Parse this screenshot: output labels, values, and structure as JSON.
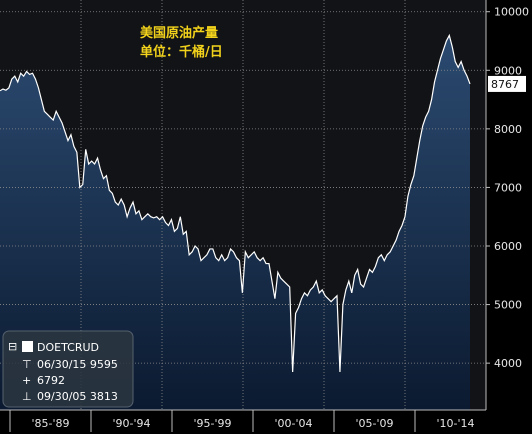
{
  "chart_data": {
    "type": "area",
    "title": "美国原油产量",
    "subtitle": "单位：千桶/日",
    "ylim": [
      3200,
      10200
    ],
    "y_ticks": [
      4000,
      5000,
      6000,
      7000,
      8000,
      9000,
      10000
    ],
    "y_tick_labels": [
      "4000",
      "5000",
      "6000",
      "7000",
      "8000",
      "9000",
      "10000"
    ],
    "x_period_labels": [
      "'85-'89",
      "'90-'94",
      "'95-'99",
      "'00-'04",
      "'05-'09",
      "'10-'14"
    ],
    "grid": true,
    "legend_placement": "bottom-left",
    "last_value_label": "8767",
    "series": [
      {
        "name": "DOETCRUD",
        "values": [
          8650,
          8680,
          8660,
          8700,
          8850,
          8900,
          8800,
          8950,
          8900,
          8980,
          8930,
          8950,
          8850,
          8700,
          8500,
          8300,
          8250,
          8200,
          8150,
          8300,
          8200,
          8100,
          7950,
          7800,
          7900,
          7700,
          7600,
          7000,
          7050,
          7650,
          7400,
          7450,
          7400,
          7500,
          7300,
          7150,
          7200,
          6950,
          6900,
          6750,
          6700,
          6800,
          6700,
          6500,
          6650,
          6750,
          6550,
          6600,
          6450,
          6500,
          6550,
          6500,
          6480,
          6500,
          6450,
          6500,
          6400,
          6350,
          6450,
          6250,
          6300,
          6500,
          6200,
          6250,
          5850,
          5900,
          6000,
          5950,
          5750,
          5800,
          5850,
          5950,
          5950,
          5800,
          5750,
          5850,
          5750,
          5800,
          5950,
          5900,
          5800,
          5750,
          5200,
          5900,
          5800,
          5850,
          5900,
          5800,
          5750,
          5800,
          5700,
          5700,
          5400,
          5100,
          5550,
          5450,
          5400,
          5350,
          5300,
          3850,
          4850,
          4950,
          5100,
          5200,
          5150,
          5250,
          5300,
          5400,
          5200,
          5250,
          5150,
          5100,
          5050,
          5100,
          5150,
          3850,
          5000,
          5250,
          5400,
          5200,
          5500,
          5600,
          5350,
          5300,
          5450,
          5600,
          5550,
          5650,
          5800,
          5850,
          5750,
          5850,
          5900,
          6000,
          6100,
          6250,
          6350,
          6500,
          6850,
          7050,
          7200,
          7500,
          7800,
          8050,
          8200,
          8300,
          8500,
          8800,
          9000,
          9200,
          9350,
          9500,
          9595,
          9400,
          9150,
          9050,
          9150,
          9000,
          8900,
          8767
        ]
      }
    ],
    "legend": {
      "series_code": "DOETCRUD",
      "high": "06/30/15 9595",
      "avg": "6792",
      "low": "09/30/05 3813"
    }
  },
  "colors": {
    "background": "#000000",
    "area_top": "#2b4a70",
    "area_bottom": "#0b1a30",
    "line": "#ffffff",
    "grid": "#8a8a8a",
    "title": "#f2d21b"
  }
}
